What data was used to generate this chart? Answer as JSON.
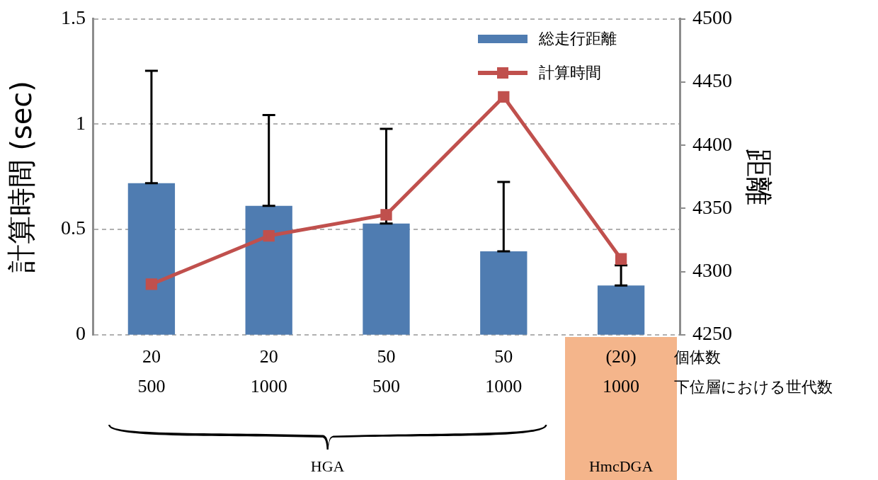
{
  "chart_data": {
    "type": "bar",
    "categories": [
      "20\n500",
      "20\n1000",
      "50\n500",
      "50\n1000",
      "(20)\n1000"
    ],
    "series": [
      {
        "name": "総走行距離",
        "axis": "y2",
        "color": "#4f7cb1",
        "values": [
          4370,
          4352,
          4338,
          4316,
          4289
        ],
        "errors": [
          [
            4370,
            4459
          ],
          [
            4352,
            4424
          ],
          [
            4338,
            4413
          ],
          [
            4316,
            4371
          ],
          [
            4289,
            4305
          ]
        ]
      },
      {
        "name": "計算時間",
        "type": "line",
        "color": "#c0504d",
        "values": [
          0.24,
          0.47,
          0.57,
          1.13,
          0.36
        ]
      }
    ],
    "ylabel": "計算時間 (sec)",
    "y2label": "距離",
    "ylim": [
      0,
      1.5
    ],
    "yticks": [
      0,
      0.5,
      1,
      1.5
    ],
    "y2lim": [
      4250,
      4500
    ],
    "y2ticks": [
      4250,
      4300,
      4350,
      4400,
      4450,
      4500
    ],
    "grid": "y",
    "legend": "top right",
    "marker": "square",
    "line_style": "solid",
    "annotations": [
      "個体数",
      "下位層における世代数",
      "HGA",
      "HmcDGA"
    ]
  }
}
